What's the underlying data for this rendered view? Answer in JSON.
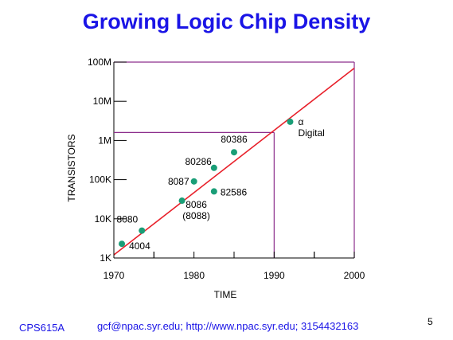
{
  "slide": {
    "title": "Growing Logic Chip Density",
    "course": "CPS615A",
    "contact": "gcf@npac.syr.edu; http://www.npac.syr.edu; 3154432163",
    "page_number": "5"
  },
  "colors": {
    "title": "#1a14e6",
    "trend_line": "#e8202a",
    "guide_line": "#8c2f8c",
    "points": "#1a9e77",
    "axes": "#000000"
  },
  "chart_data": {
    "type": "scatter",
    "title": "Growing Logic Chip Density",
    "xlabel": "TIME",
    "ylabel": "TRANSISTORS",
    "xlim": [
      1970,
      2000
    ],
    "ylim": [
      1000,
      100000000
    ],
    "y_scale": "log",
    "x_ticks": [
      1970,
      1980,
      1990,
      2000
    ],
    "y_ticks": [
      {
        "value": 1000,
        "label": "1K"
      },
      {
        "value": 10000,
        "label": "10K"
      },
      {
        "value": 100000,
        "label": "100K"
      },
      {
        "value": 1000000,
        "label": "1M"
      },
      {
        "value": 10000000,
        "label": "10M"
      },
      {
        "value": 100000000,
        "label": "100M"
      }
    ],
    "points": [
      {
        "label": "4004",
        "x": 1971,
        "y": 2300
      },
      {
        "label": "8080",
        "x": 1973.5,
        "y": 5000
      },
      {
        "label": "8086\n(8088)",
        "x": 1978.5,
        "y": 29000
      },
      {
        "label": "8087",
        "x": 1980,
        "y": 90000
      },
      {
        "label": "80286",
        "x": 1982.5,
        "y": 200000
      },
      {
        "label": "82586",
        "x": 1982.5,
        "y": 50000
      },
      {
        "label": "80386",
        "x": 1985,
        "y": 500000
      },
      {
        "label": "α\nDigital",
        "x": 1992,
        "y": 3000000
      }
    ],
    "trend_line": {
      "x": [
        1970,
        2000
      ],
      "y": [
        1200,
        70000000
      ]
    },
    "guide_lines": {
      "x": 1990,
      "y": 1600000
    }
  }
}
